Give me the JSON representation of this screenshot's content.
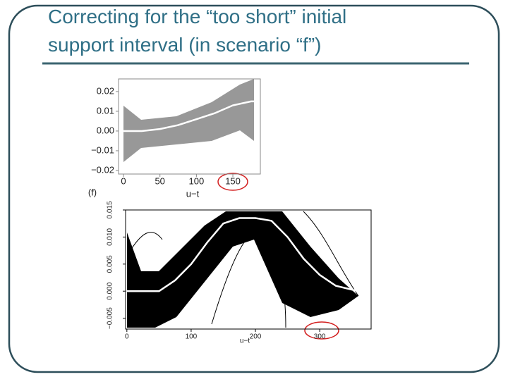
{
  "title_lines": [
    "Correcting for the “too short” initial",
    "support interval (in scenario “f”)"
  ],
  "chart_data": [
    {
      "type": "line",
      "annotation": "(f)",
      "x_label": "u−t",
      "xlim": [
        -6.8,
        187.7
      ],
      "ylim": [
        -0.0218,
        0.0264
      ],
      "xticks": [
        0,
        50,
        100,
        150
      ],
      "yticks": [
        {
          "value": -0.02,
          "label": "−0.02"
        },
        {
          "value": -0.01,
          "label": "−0.01"
        },
        {
          "value": 0,
          "label": "0.00"
        },
        0.01,
        0.02
      ],
      "x": [
        0,
        25,
        50,
        75,
        100,
        125,
        150,
        175,
        185
      ],
      "series": [
        {
          "color": "#ffffff",
          "values": [
            0,
            0,
            0.001,
            0.003,
            0.006,
            0.009,
            0.013,
            0.015,
            0.015
          ]
        }
      ]
    },
    {
      "type": "line",
      "x_label": "u−t",
      "xlim": [
        -2,
        380
      ],
      "ylim": [
        -0.007,
        0.015
      ],
      "xticks": [
        0,
        100,
        200,
        300
      ],
      "yticks": [
        {
          "value": -0.005,
          "label": "−0.005"
        },
        {
          "value": 0,
          "label": "0.000"
        },
        0.005,
        {
          "value": 0.01,
          "label": "0.010"
        },
        0.015
      ],
      "x": [
        0,
        25,
        50,
        75,
        100,
        125,
        150,
        175,
        200,
        225,
        250,
        275,
        300,
        325,
        360
      ],
      "series": [
        {
          "color": "#ffffff",
          "values": [
            0,
            0,
            0,
            0.002,
            0.005,
            0.009,
            0.0125,
            0.0135,
            0.0135,
            0.013,
            0.01,
            0.006,
            0.003,
            0.001,
            0
          ]
        }
      ]
    }
  ]
}
